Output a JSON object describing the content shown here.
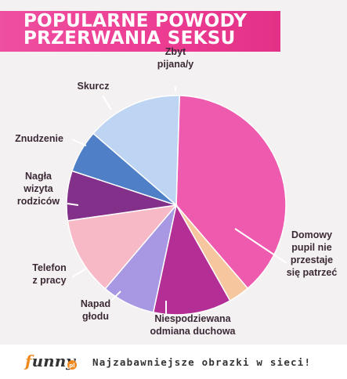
{
  "title": {
    "line1": "POPULARNE POWODY",
    "line2": "PRZERWANIA SEKSU"
  },
  "chart_data": {
    "type": "pie",
    "title": "POPULARNE POWODY PRZERWANIA SEKSU",
    "start_angle_deg": 180,
    "direction": "clockwise",
    "slices": [
      {
        "label_lines": [
          "Domowy",
          "pupil nie",
          "przestaje",
          "się patrzeć"
        ],
        "label": "Domowy pupil nie przestaje się patrzeć",
        "value": 36.5,
        "color": "#ee5aae"
      },
      {
        "label_lines": [
          "Zbyt",
          "pijana/y"
        ],
        "label": "Zbyt pijana/y",
        "value": 13.5,
        "color": "#bdd4f2"
      },
      {
        "label_lines": [
          "Skurcz"
        ],
        "label": "Skurcz",
        "value": 6.0,
        "color": "#4f7fc6"
      },
      {
        "label_lines": [
          "Znudzenie"
        ],
        "label": "Znudzenie",
        "value": 7.0,
        "color": "#83308b"
      },
      {
        "label_lines": [
          "Nagła",
          "wizyta",
          "rodziców"
        ],
        "label": "Nagła wizyta rodziców",
        "value": 11.0,
        "color": "#f7b9c6"
      },
      {
        "label_lines": [
          "Telefon",
          "z pracy"
        ],
        "label": "Telefon z pracy",
        "value": 7.5,
        "color": "#a897e3"
      },
      {
        "label_lines": [
          "Napad",
          "głodu"
        ],
        "label": "Napad głodu",
        "value": 11.0,
        "color": "#b32f96"
      },
      {
        "label_lines": [
          "Niespodziewana",
          "odmiana duchowa"
        ],
        "label": "Niespodziewana odmiana duchowa",
        "value": 3.0,
        "color": "#f6c79e"
      }
    ]
  },
  "footer": {
    "logo_text": "funny",
    "logo_badge": "pl",
    "slogan": "Najzabawniejsze obrazki w sieci!"
  }
}
